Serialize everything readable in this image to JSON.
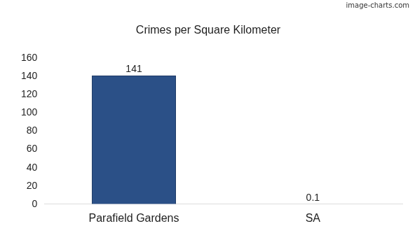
{
  "chart_data": {
    "type": "bar",
    "title": "Crimes per Square Kilometer",
    "categories": [
      "Parafield Gardens",
      "SA"
    ],
    "values": [
      141,
      0.1
    ],
    "color": "#2b5087",
    "ylim": [
      0,
      160
    ],
    "yticks": [
      0,
      20,
      40,
      60,
      80,
      100,
      120,
      140,
      160
    ],
    "grid": false,
    "data_labels": true,
    "annotations": [
      "image-charts.com"
    ]
  }
}
